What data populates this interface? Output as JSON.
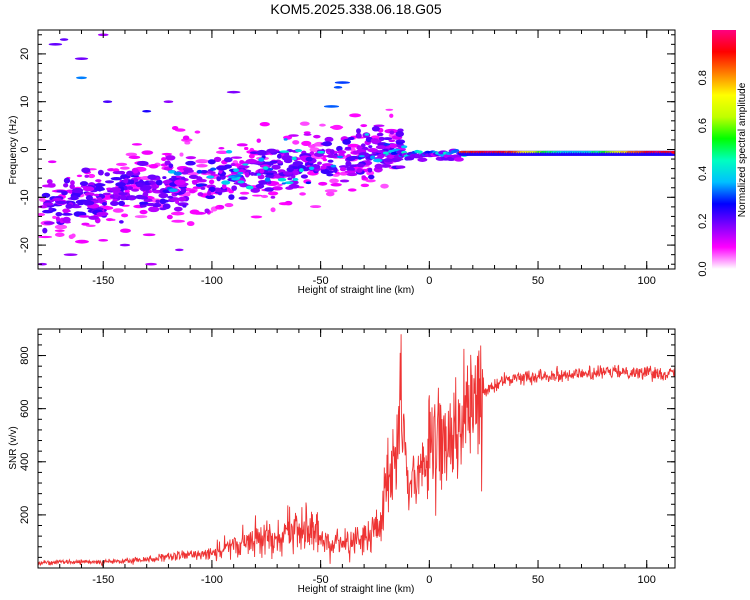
{
  "figure": {
    "title": "KOM5.2025.338.06.18.G05"
  },
  "chart_data": [
    {
      "type": "heatmap",
      "name": "spectrogram",
      "title": "KOM5.2025.338.06.18.G05",
      "xlabel": "Height of straight line (km)",
      "ylabel": "Frequency (Hz)",
      "xlim": [
        -180,
        113
      ],
      "ylim": [
        -25,
        25
      ],
      "x_ticks": [
        -150,
        -100,
        -50,
        0,
        50,
        100
      ],
      "y_ticks": [
        -20,
        -10,
        0,
        10,
        20
      ],
      "colorbar": {
        "label": "Normalized spectral amplitude",
        "range": [
          0,
          1
        ],
        "ticks": [
          0.0,
          0.2,
          0.4,
          0.6,
          0.8
        ],
        "colormap": [
          "#ffffff",
          "#ff00ff",
          "#8000ff",
          "#0000ff",
          "#00c0ff",
          "#00ffc0",
          "#00ff00",
          "#c0ff00",
          "#ffff00",
          "#ff8000",
          "#ff0000",
          "#ff0080"
        ]
      },
      "features": [
        {
          "desc": "dominant tone near 0 Hz",
          "x_range": [
            15,
            113
          ],
          "freq_hz": -0.8,
          "amplitude": 0.9
        },
        {
          "desc": "transition tone",
          "x_range": [
            -20,
            15
          ],
          "freq_hz": -1.0,
          "amplitude": 0.35
        },
        {
          "desc": "scattered low-amplitude blobs",
          "x_range": [
            -180,
            -20
          ],
          "freq_range": [
            -25,
            25
          ],
          "amplitude": 0.05
        }
      ]
    },
    {
      "type": "line",
      "name": "snr",
      "xlabel": "Height of straight line (km)",
      "ylabel": "SNR (v/v)",
      "xlim": [
        -180,
        113
      ],
      "ylim": [
        0,
        900
      ],
      "x_ticks": [
        -150,
        -100,
        -50,
        0,
        50,
        100
      ],
      "y_ticks": [
        200,
        400,
        600,
        800
      ],
      "series_color": "#ee3333",
      "trend": {
        "x": [
          -180,
          -140,
          -120,
          -100,
          -85,
          -70,
          -60,
          -45,
          -30,
          -22,
          -18,
          -15,
          -13,
          -10,
          -5,
          0,
          10,
          18,
          25,
          35,
          50,
          70,
          90,
          100,
          113
        ],
        "y": [
          20,
          25,
          40,
          60,
          90,
          130,
          150,
          95,
          110,
          150,
          350,
          450,
          700,
          300,
          380,
          420,
          500,
          580,
          660,
          710,
          725,
          730,
          740,
          735,
          735
        ]
      }
    }
  ]
}
